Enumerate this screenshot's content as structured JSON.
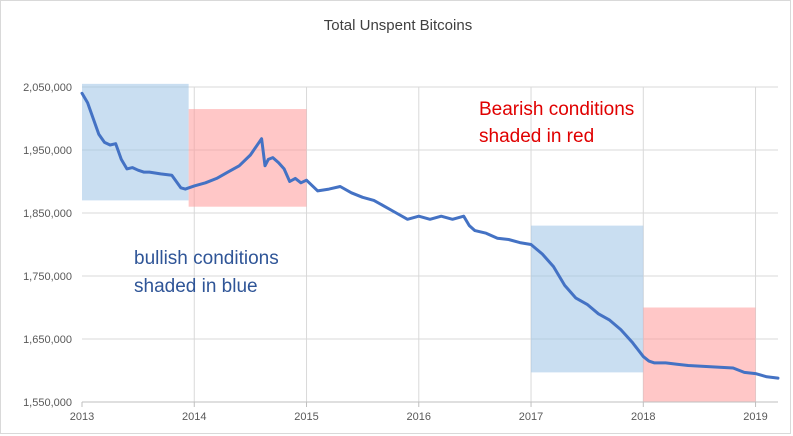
{
  "chart_data": {
    "type": "line",
    "title": "Total Unspent Bitcoins",
    "xlabel": "",
    "ylabel": "",
    "ylim": [
      1550000,
      2050000
    ],
    "xlim": [
      2013,
      2019.2
    ],
    "y_ticks": [
      1550000,
      1650000,
      1750000,
      1850000,
      1950000,
      2050000
    ],
    "y_tick_labels": [
      "1,550,000",
      "1,650,000",
      "1,750,000",
      "1,850,000",
      "1,950,000",
      "2,050,000"
    ],
    "x_ticks": [
      2013,
      2014,
      2015,
      2016,
      2017,
      2018,
      2019
    ],
    "x_tick_labels": [
      "2013",
      "2014",
      "2015",
      "2016",
      "2017",
      "2018",
      "2019"
    ],
    "grid": true,
    "series": [
      {
        "name": "Total Unspent Bitcoins",
        "color": "#4472c4",
        "x": [
          2013.0,
          2013.05,
          2013.1,
          2013.15,
          2013.2,
          2013.25,
          2013.3,
          2013.35,
          2013.4,
          2013.45,
          2013.5,
          2013.55,
          2013.6,
          2013.7,
          2013.8,
          2013.88,
          2013.92,
          2014.0,
          2014.1,
          2014.2,
          2014.3,
          2014.4,
          2014.5,
          2014.6,
          2014.63,
          2014.66,
          2014.7,
          2014.75,
          2014.8,
          2014.85,
          2014.9,
          2014.95,
          2015.0,
          2015.1,
          2015.2,
          2015.3,
          2015.4,
          2015.5,
          2015.6,
          2015.7,
          2015.8,
          2015.9,
          2016.0,
          2016.1,
          2016.2,
          2016.3,
          2016.4,
          2016.45,
          2016.5,
          2016.6,
          2016.7,
          2016.8,
          2016.9,
          2017.0,
          2017.1,
          2017.2,
          2017.3,
          2017.4,
          2017.5,
          2017.6,
          2017.7,
          2017.8,
          2017.9,
          2018.0,
          2018.05,
          2018.1,
          2018.2,
          2018.3,
          2018.4,
          2018.5,
          2018.6,
          2018.7,
          2018.8,
          2018.9,
          2019.0,
          2019.1,
          2019.2
        ],
        "values": [
          2040000,
          2025000,
          2000000,
          1975000,
          1962000,
          1958000,
          1960000,
          1935000,
          1920000,
          1922000,
          1918000,
          1915000,
          1915000,
          1912000,
          1910000,
          1890000,
          1888000,
          1893000,
          1898000,
          1905000,
          1915000,
          1925000,
          1942000,
          1968000,
          1925000,
          1935000,
          1938000,
          1930000,
          1920000,
          1900000,
          1905000,
          1898000,
          1902000,
          1885000,
          1888000,
          1892000,
          1882000,
          1875000,
          1870000,
          1860000,
          1850000,
          1840000,
          1845000,
          1840000,
          1845000,
          1840000,
          1845000,
          1830000,
          1822000,
          1818000,
          1810000,
          1808000,
          1803000,
          1800000,
          1785000,
          1765000,
          1735000,
          1715000,
          1705000,
          1690000,
          1680000,
          1665000,
          1645000,
          1622000,
          1615000,
          1612000,
          1612000,
          1610000,
          1608000,
          1607000,
          1606000,
          1605000,
          1604000,
          1597000,
          1595000,
          1590000,
          1588000
        ]
      }
    ],
    "shaded_regions": [
      {
        "x_start": 2013.0,
        "x_end": 2013.95,
        "y_low": 1870000,
        "y_high": 2055000,
        "color": "#9dc3e6",
        "opacity": 0.55,
        "condition": "bullish"
      },
      {
        "x_start": 2013.95,
        "x_end": 2015.0,
        "y_low": 1860000,
        "y_high": 2015000,
        "color": "#ff9999",
        "opacity": 0.55,
        "condition": "bearish"
      },
      {
        "x_start": 2017.0,
        "x_end": 2018.0,
        "y_low": 1597000,
        "y_high": 1830000,
        "color": "#9dc3e6",
        "opacity": 0.55,
        "condition": "bullish"
      },
      {
        "x_start": 2018.0,
        "x_end": 2019.0,
        "y_low": 1550000,
        "y_high": 1700000,
        "color": "#ff9999",
        "opacity": 0.55,
        "condition": "bearish"
      }
    ],
    "annotations": [
      {
        "lines": [
          "Bearish conditions",
          "shaded in red"
        ],
        "color": "#e00000",
        "placement": "upper-right"
      },
      {
        "lines": [
          "bullish conditions",
          "shaded in blue"
        ],
        "color": "#2f5597",
        "placement": "middle-left"
      }
    ]
  }
}
